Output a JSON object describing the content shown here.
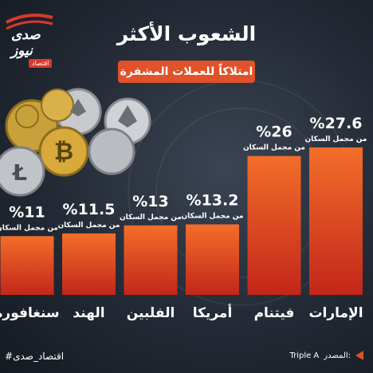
{
  "logo": {
    "name": "صدى نيوز",
    "tag": "اقتصاد"
  },
  "title": "الشعوب الأكثر",
  "subtitle": "امتلاكاً للعملات المشفرة",
  "footer": {
    "hashtag": "#اقتصاد_صدى",
    "source_label": "المصدر:",
    "source_value": "Triple A"
  },
  "colors": {
    "bar_top": "#f36e2a",
    "bar_bottom": "#c2261a",
    "accent": "#e0522a",
    "background": "#232a35"
  },
  "chart_data": {
    "type": "bar",
    "categories": [
      "الإمارات",
      "فيتنام",
      "أمريكا",
      "الفلبين",
      "الهند",
      "سنغافورة"
    ],
    "values": [
      27.6,
      26,
      13.2,
      13,
      11.5,
      11
    ],
    "value_labels": [
      "%27.6",
      "%26",
      "%13.2",
      "%13",
      "%11.5",
      "%11"
    ],
    "value_sublabel": "من مجمل السكان",
    "unit": "%"
  }
}
